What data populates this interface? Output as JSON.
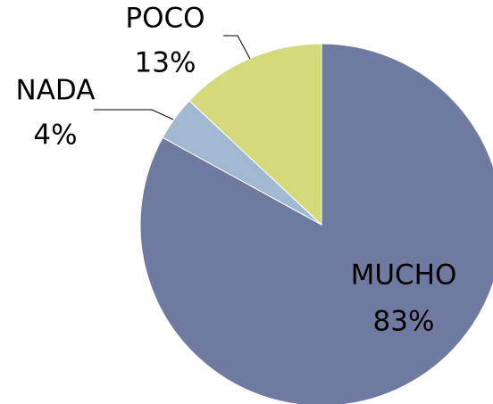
{
  "chart_data": {
    "type": "pie",
    "categories": [
      "MUCHO",
      "NADA",
      "POCO"
    ],
    "values": [
      83,
      4,
      13
    ],
    "value_labels": [
      "83%",
      "4%",
      "13%"
    ],
    "colors": [
      "#6f7aa0",
      "#a0b8d0",
      "#d4d97a"
    ]
  }
}
